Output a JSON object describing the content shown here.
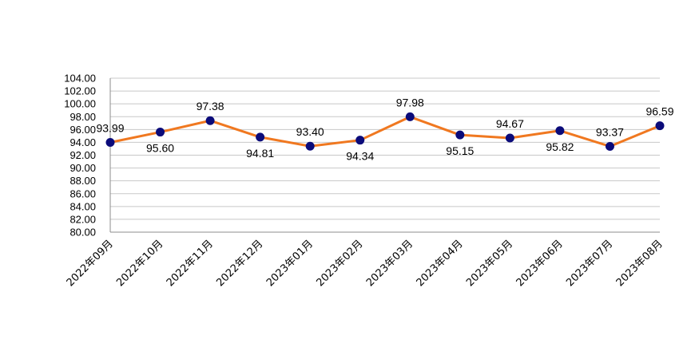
{
  "chart_data": {
    "type": "line",
    "title": "",
    "xlabel": "",
    "ylabel": "",
    "categories": [
      "2022年09月",
      "2022年10月",
      "2022年11月",
      "2022年12月",
      "2023年01月",
      "2023年02月",
      "2023年03月",
      "2023年04月",
      "2023年05月",
      "2023年06月",
      "2023年07月",
      "2023年08月"
    ],
    "series": [
      {
        "values": [
          93.99,
          95.6,
          97.38,
          94.81,
          93.4,
          94.34,
          97.98,
          95.15,
          94.67,
          95.82,
          93.37,
          96.59
        ],
        "labels": [
          "93.99",
          "95.60",
          "97.38",
          "94.81",
          "93.40",
          "94.34",
          "97.98",
          "95.15",
          "94.67",
          "95.82",
          "93.37",
          "96.59"
        ],
        "label_positions": [
          "above",
          "below",
          "above",
          "below",
          "above",
          "below",
          "above",
          "below",
          "above",
          "below",
          "above",
          "above"
        ],
        "line_color": "#F07820",
        "marker_color": "#0B0B7A"
      }
    ],
    "ylim": [
      80,
      104
    ],
    "yticks": [
      "80.00",
      "82.00",
      "84.00",
      "86.00",
      "88.00",
      "90.00",
      "92.00",
      "94.00",
      "96.00",
      "98.00",
      "100.00",
      "102.00",
      "104.00"
    ],
    "grid": true,
    "legend": "none",
    "colors": {
      "grid": "#C8C8C8",
      "axis": "#8C8C8C"
    }
  }
}
